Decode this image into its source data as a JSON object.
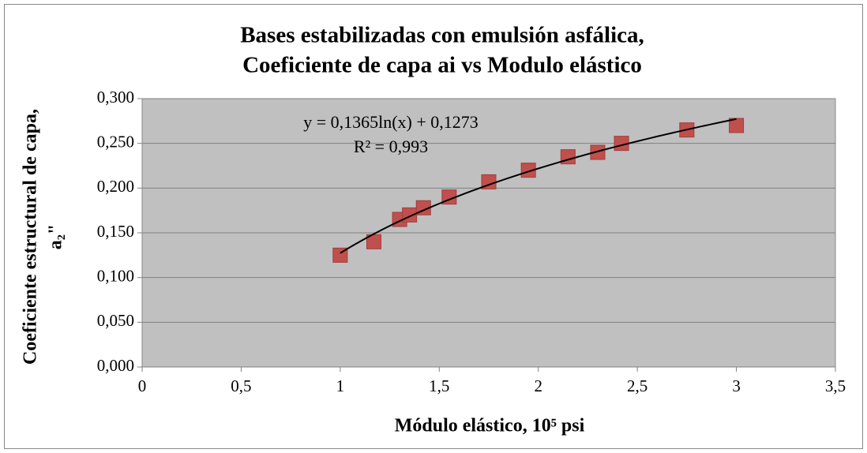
{
  "chart_data": {
    "type": "scatter",
    "title": [
      "Bases estabilizadas con emulsión asfálica,",
      "Coeficiente de capa ai vs Modulo elástico"
    ],
    "y_label": [
      "Coeficiente estructural de capa,",
      "a₂\""
    ],
    "x_label": "Módulo elástico, 10⁵ psi",
    "x": [
      1.0,
      1.17,
      1.3,
      1.35,
      1.42,
      1.55,
      1.75,
      1.95,
      2.15,
      2.3,
      2.42,
      2.75,
      3.0
    ],
    "values": [
      0.125,
      0.14,
      0.165,
      0.17,
      0.178,
      0.19,
      0.207,
      0.22,
      0.235,
      0.24,
      0.25,
      0.265,
      0.27
    ],
    "color": "#c0504d",
    "trendline": {
      "type": "log",
      "coefficients": [
        0.1365,
        0.1273
      ],
      "label": "y = 0,1365ln(x) + 0,1273",
      "r2_label": "R² = 0,993"
    },
    "xlim": [
      0,
      3.5
    ],
    "xticks": [
      0,
      {
        "value": 0.5,
        "label": "0,5"
      },
      1,
      {
        "value": 1.5,
        "label": "1,5"
      },
      2,
      {
        "value": 2.5,
        "label": "2,5"
      },
      3,
      {
        "value": 3.5,
        "label": "3,5"
      }
    ],
    "ylim": [
      0,
      0.3
    ],
    "yticks": [
      {
        "value": 0,
        "label": "0,000"
      },
      {
        "value": 0.05,
        "label": "0,050"
      },
      {
        "value": 0.1,
        "label": "0,100"
      },
      {
        "value": 0.15,
        "label": "0,150"
      },
      {
        "value": 0.2,
        "label": "0,200"
      },
      {
        "value": 0.25,
        "label": "0,250"
      },
      {
        "value": 0.3,
        "label": "0,300"
      }
    ],
    "grid": true
  }
}
